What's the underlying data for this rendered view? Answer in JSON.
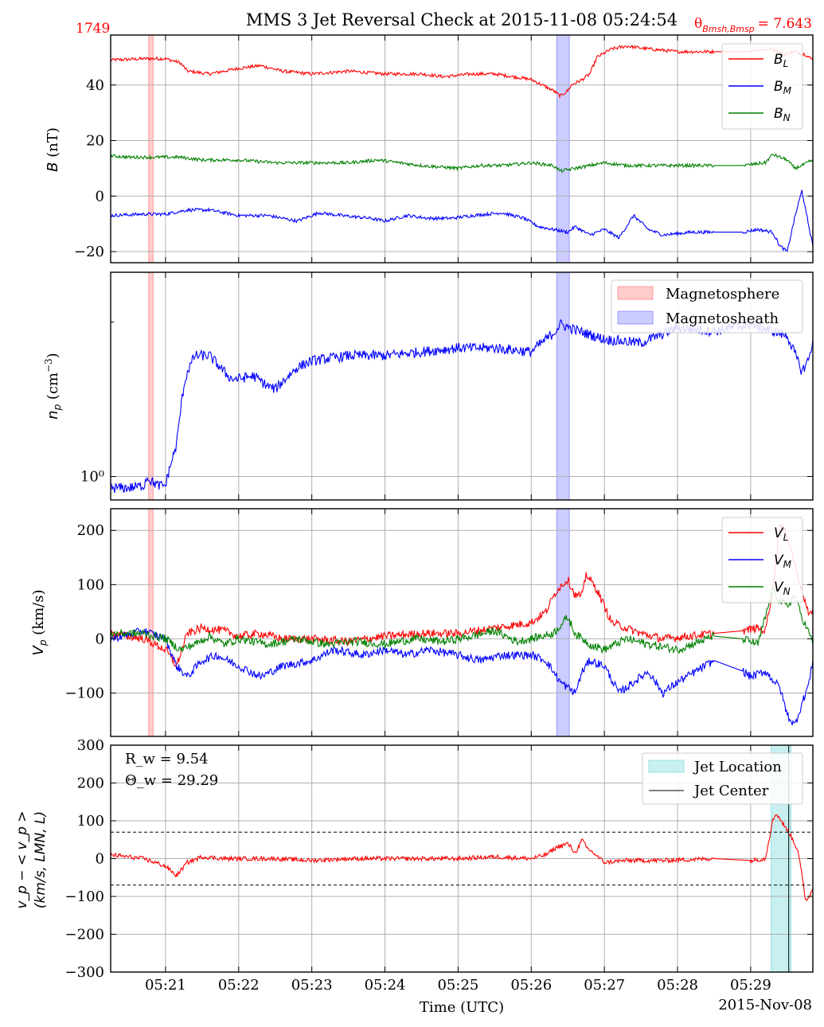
{
  "header": {
    "title": "MMS 3 Jet Reversal Check at 2015-11-08 05:24:54",
    "left_label": "1749",
    "right_label_symbol": "θ",
    "right_label_sub": "Bmsh,Bmsp",
    "right_label_value": "= 7.643"
  },
  "xaxis": {
    "label": "Time (UTC)",
    "date_label": "2015-Nov-08",
    "ticks": [
      "05:21",
      "05:22",
      "05:23",
      "05:24",
      "05:25",
      "05:26",
      "05:27",
      "05:28",
      "05:29"
    ],
    "range_minutes": [
      -0.75,
      8.85
    ]
  },
  "colors": {
    "red": "#ff0000",
    "blue": "#0000ff",
    "green": "#008000",
    "magnetosphere_fill": "#ffcccc",
    "magnetosheath_fill": "#ccccff",
    "jet_fill": "#c8f0f0",
    "grid": "#b0b0b0"
  },
  "shading": {
    "magnetosphere": [
      -0.23,
      -0.17
    ],
    "magnetosheath": [
      5.35,
      5.52
    ],
    "jet_location": [
      8.28,
      8.55
    ],
    "jet_center": 8.52
  },
  "chart_data": [
    {
      "type": "line",
      "ylabel": "B (nT)",
      "ylim": [
        -24,
        58
      ],
      "yticks": [
        "−20",
        "0",
        "20",
        "40"
      ],
      "ytick_values": [
        -20,
        0,
        20,
        40
      ],
      "legend": [
        "B_L",
        "B_M",
        "B_N"
      ],
      "legend_placement": "upper-right",
      "series": [
        {
          "name": "B_L",
          "color": "red",
          "x": [
            -0.75,
            -0.25,
            0.0,
            0.2,
            0.3,
            0.6,
            1.0,
            1.3,
            1.6,
            2.0,
            2.5,
            3.0,
            3.5,
            3.8,
            4.2,
            4.5,
            5.0,
            5.3,
            5.4,
            5.5,
            5.55,
            5.7,
            5.8,
            5.9,
            6.1,
            6.3,
            6.6,
            7.0,
            7.5,
            7.9,
            8.3,
            8.45,
            8.6,
            8.75,
            8.85
          ],
          "y": [
            49,
            49.5,
            49.5,
            48,
            45,
            44,
            46,
            47,
            45,
            44,
            45,
            44,
            44,
            43,
            44,
            44,
            42,
            38,
            36,
            38,
            40,
            42,
            44,
            50,
            53,
            54,
            53,
            52,
            52,
            52,
            53,
            51,
            52,
            51,
            49
          ]
        },
        {
          "name": "B_M",
          "color": "blue",
          "x": [
            -0.75,
            -0.3,
            0.0,
            0.3,
            0.6,
            1.0,
            1.4,
            1.8,
            2.1,
            2.4,
            2.8,
            3.0,
            3.3,
            3.6,
            3.9,
            4.2,
            4.6,
            4.9,
            5.1,
            5.3,
            5.5,
            5.6,
            5.8,
            6.0,
            6.2,
            6.4,
            6.6,
            6.8,
            7.2,
            7.5,
            7.9,
            8.1,
            8.3,
            8.4,
            8.5,
            8.6,
            8.7,
            8.75,
            8.85
          ],
          "y": [
            -7,
            -6.5,
            -6.5,
            -5,
            -5,
            -7,
            -7,
            -9,
            -6,
            -7,
            -8,
            -9,
            -7,
            -8,
            -8,
            -7,
            -6,
            -8,
            -11,
            -12,
            -13,
            -11,
            -14,
            -12,
            -15,
            -7,
            -12,
            -14,
            -13,
            -13,
            -13,
            -12,
            -13,
            -18,
            -20,
            -8,
            2,
            -5,
            -18
          ]
        },
        {
          "name": "B_N",
          "color": "green",
          "x": [
            -0.75,
            -0.5,
            -0.2,
            0.2,
            0.5,
            1.0,
            1.5,
            2.0,
            2.5,
            2.9,
            3.2,
            3.5,
            4.0,
            4.3,
            4.6,
            5.0,
            5.3,
            5.4,
            5.6,
            6.0,
            6.3,
            6.6,
            7.0,
            7.5,
            7.9,
            8.2,
            8.3,
            8.5,
            8.6,
            8.7,
            8.85
          ],
          "y": [
            14.5,
            14,
            14,
            14,
            13,
            13,
            12,
            12,
            12,
            13,
            12,
            11,
            10,
            11,
            11,
            12,
            11,
            9,
            10,
            12,
            11,
            11,
            11,
            11,
            11,
            12,
            15,
            13,
            10,
            11,
            13
          ]
        }
      ]
    },
    {
      "type": "line",
      "ylabel": "n_p (cm⁻³)",
      "yscale": "log",
      "ylim": [
        0.9,
        2.5
      ],
      "ytick_labels": [
        "10⁰"
      ],
      "ytick_values": [
        1.0
      ],
      "legend": [
        "Magnetosphere",
        "Magnetosheath"
      ],
      "legend_placement": "upper-right",
      "series": [
        {
          "name": "n_p",
          "color": "blue",
          "x": [
            -0.75,
            -0.5,
            -0.3,
            -0.25,
            -0.2,
            -0.1,
            0.0,
            0.05,
            0.15,
            0.25,
            0.3,
            0.4,
            0.6,
            0.8,
            0.9,
            1.0,
            1.2,
            1.4,
            1.5,
            1.7,
            1.8,
            2.0,
            2.5,
            3.0,
            3.5,
            4.0,
            4.5,
            5.0,
            5.3,
            5.4,
            5.6,
            5.8,
            6.0,
            6.5,
            7.0,
            7.5,
            8.0,
            8.5,
            8.7,
            8.8,
            8.85
          ],
          "y": [
            0.95,
            0.95,
            0.96,
            1.0,
            0.98,
            0.96,
            0.96,
            1.03,
            1.15,
            1.5,
            1.6,
            1.72,
            1.72,
            1.6,
            1.55,
            1.55,
            1.57,
            1.5,
            1.48,
            1.58,
            1.63,
            1.68,
            1.72,
            1.72,
            1.75,
            1.78,
            1.78,
            1.75,
            1.9,
            1.98,
            1.93,
            1.89,
            1.85,
            1.82,
            1.95,
            1.92,
            1.98,
            1.88,
            1.6,
            1.7,
            1.85
          ]
        }
      ]
    },
    {
      "type": "line",
      "ylabel": "V_p (km/s)",
      "ylim": [
        -180,
        240
      ],
      "yticks": [
        "−100",
        "0",
        "100",
        "200"
      ],
      "ytick_values": [
        -100,
        0,
        100,
        200
      ],
      "legend": [
        "V_L",
        "V_M",
        "V_N"
      ],
      "legend_placement": "upper-right",
      "series": [
        {
          "name": "V_L",
          "color": "red",
          "x": [
            -0.75,
            -0.3,
            0.0,
            0.15,
            0.3,
            0.5,
            0.8,
            1.0,
            1.3,
            1.6,
            2.0,
            2.5,
            3.0,
            3.5,
            4.0,
            4.5,
            5.0,
            5.2,
            5.35,
            5.5,
            5.6,
            5.7,
            5.75,
            5.9,
            6.1,
            6.3,
            6.5,
            6.8,
            7.5,
            7.9,
            8.1,
            8.2,
            8.3,
            8.4,
            8.5,
            8.6,
            8.7,
            8.8,
            8.85
          ],
          "y": [
            10,
            0,
            -20,
            -50,
            10,
            20,
            15,
            5,
            10,
            0,
            0,
            -5,
            5,
            10,
            10,
            20,
            30,
            50,
            90,
            110,
            80,
            80,
            120,
            90,
            30,
            20,
            10,
            0,
            10,
            15,
            20,
            15,
            90,
            210,
            190,
            140,
            90,
            40,
            55
          ]
        },
        {
          "name": "V_M",
          "color": "blue",
          "x": [
            -0.75,
            -0.3,
            0.0,
            0.15,
            0.3,
            0.5,
            0.7,
            1.0,
            1.3,
            1.6,
            2.0,
            2.3,
            2.7,
            3.0,
            3.3,
            3.6,
            4.0,
            4.3,
            4.6,
            5.0,
            5.2,
            5.4,
            5.6,
            5.7,
            5.8,
            6.0,
            6.2,
            6.4,
            6.6,
            6.8,
            7.0,
            7.5,
            7.9,
            8.0,
            8.2,
            8.4,
            8.5,
            8.6,
            8.7,
            8.8,
            8.85
          ],
          "y": [
            0,
            15,
            0,
            -50,
            -70,
            -40,
            -30,
            -50,
            -70,
            -50,
            -40,
            -20,
            -30,
            -20,
            -30,
            -20,
            -30,
            -40,
            -30,
            -30,
            -40,
            -80,
            -100,
            -60,
            -40,
            -50,
            -100,
            -80,
            -60,
            -100,
            -80,
            -40,
            -60,
            -70,
            -60,
            -90,
            -140,
            -160,
            -120,
            -80,
            -40
          ]
        },
        {
          "name": "V_N",
          "color": "green",
          "x": [
            -0.75,
            -0.3,
            0.0,
            0.2,
            0.4,
            0.6,
            0.8,
            1.0,
            1.4,
            1.8,
            2.2,
            2.6,
            3.0,
            3.4,
            3.8,
            4.2,
            4.5,
            4.8,
            5.0,
            5.3,
            5.5,
            5.6,
            5.8,
            6.0,
            6.3,
            6.6,
            7.0,
            7.5,
            7.9,
            8.1,
            8.3,
            8.4,
            8.5,
            8.6,
            8.7,
            8.8,
            8.85
          ],
          "y": [
            10,
            10,
            0,
            -20,
            -10,
            5,
            -10,
            0,
            -10,
            0,
            -10,
            -5,
            -10,
            0,
            -5,
            5,
            15,
            -5,
            0,
            10,
            40,
            10,
            -10,
            -20,
            0,
            -10,
            -20,
            5,
            0,
            -10,
            90,
            70,
            60,
            80,
            40,
            10,
            -10
          ]
        }
      ]
    },
    {
      "type": "line",
      "ylabel_line1": "v_p − < v_p >",
      "ylabel_line2": "(km/s, LMN, L)",
      "ylim": [
        -300,
        300
      ],
      "yticks": [
        "−300",
        "−200",
        "−100",
        "0",
        "100",
        "200",
        "300"
      ],
      "ytick_values": [
        -300,
        -200,
        -100,
        0,
        100,
        200,
        300
      ],
      "hlines": [
        70,
        -70
      ],
      "annotation_line1": "R_w = 9.54",
      "annotation_line2": "Θ_w = 29.29",
      "legend": [
        "Jet Location",
        "Jet Center"
      ],
      "legend_placement": "upper-right",
      "series": [
        {
          "name": "v_p − <v_p>",
          "color": "red",
          "x": [
            -0.75,
            -0.3,
            0.0,
            0.15,
            0.3,
            0.5,
            0.8,
            1.0,
            1.5,
            2.0,
            2.5,
            3.0,
            3.5,
            4.0,
            4.5,
            5.0,
            5.2,
            5.35,
            5.5,
            5.6,
            5.7,
            5.75,
            5.85,
            6.0,
            6.3,
            6.8,
            7.5,
            8.0,
            8.2,
            8.3,
            8.35,
            8.45,
            8.55,
            8.65,
            8.75,
            8.8,
            8.85
          ],
          "y": [
            10,
            0,
            -20,
            -45,
            -10,
            5,
            0,
            0,
            0,
            -5,
            0,
            0,
            0,
            0,
            5,
            0,
            10,
            30,
            40,
            15,
            50,
            30,
            15,
            -10,
            -5,
            -5,
            0,
            -5,
            0,
            100,
            120,
            90,
            60,
            20,
            -110,
            -100,
            -80
          ]
        }
      ]
    }
  ]
}
